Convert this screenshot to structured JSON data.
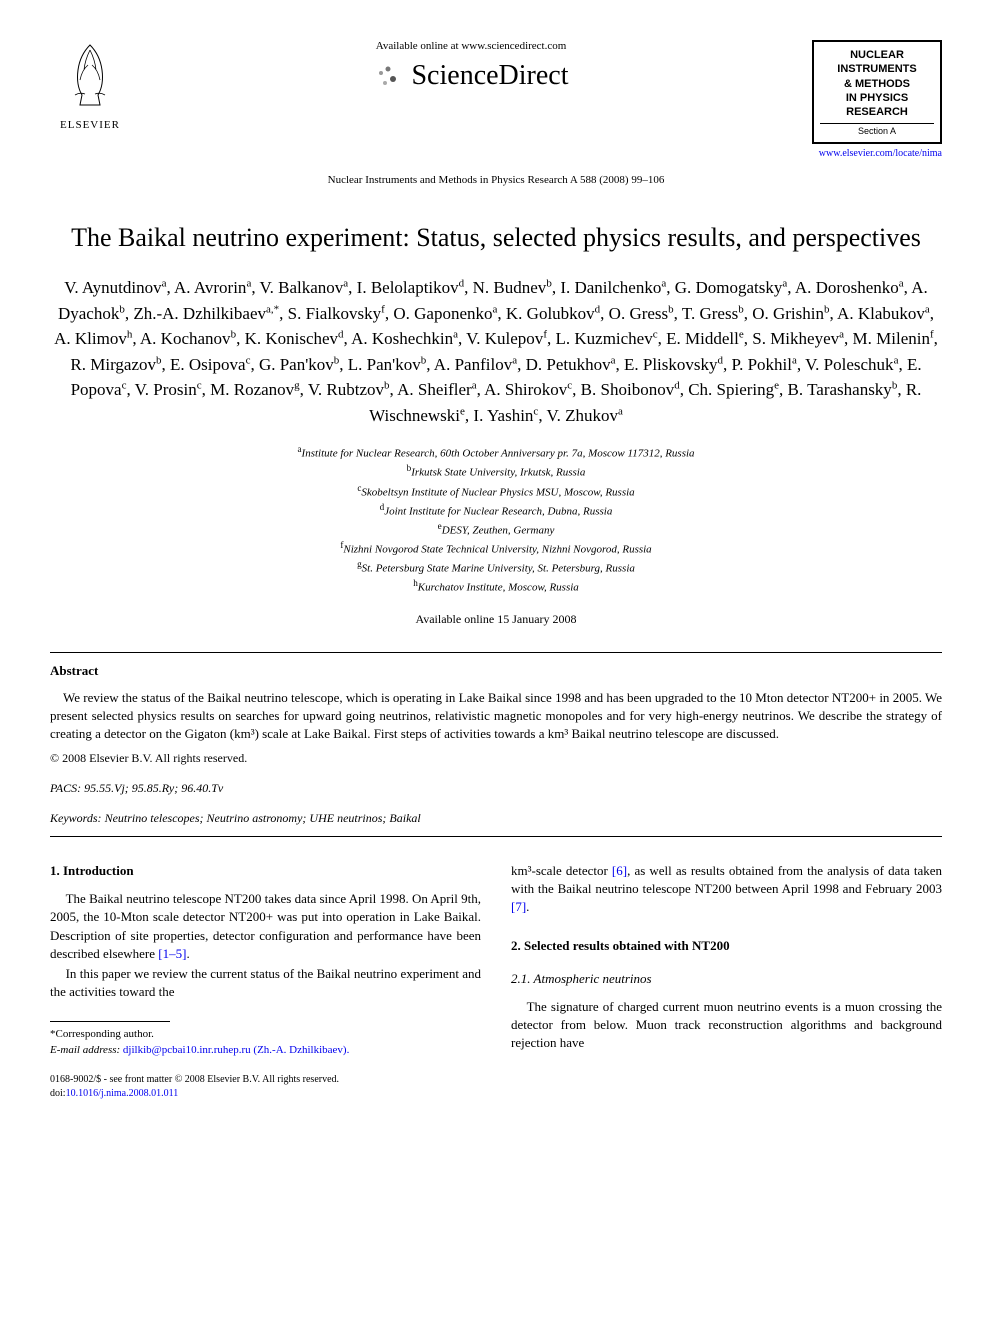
{
  "header": {
    "publisher_name": "ELSEVIER",
    "available_text": "Available online at www.sciencedirect.com",
    "platform_name": "ScienceDirect",
    "citation": "Nuclear Instruments and Methods in Physics Research A 588 (2008) 99–106",
    "journal_box": {
      "line1": "NUCLEAR",
      "line2": "INSTRUMENTS",
      "line3": "& METHODS",
      "line4": "IN PHYSICS",
      "line5": "RESEARCH",
      "section": "Section A"
    },
    "journal_url": "www.elsevier.com/locate/nima"
  },
  "title": "The Baikal neutrino experiment: Status, selected physics results, and perspectives",
  "authors_html": "V. Aynutdinov<sup>a</sup>, A. Avrorin<sup>a</sup>, V. Balkanov<sup>a</sup>, I. Belolaptikov<sup>d</sup>, N. Budnev<sup>b</sup>, I. Danilchenko<sup>a</sup>, G. Domogatsky<sup>a</sup>, A. Doroshenko<sup>a</sup>, A. Dyachok<sup>b</sup>, Zh.-A. Dzhilkibaev<sup>a,*</sup>, S. Fialkovsky<sup>f</sup>, O. Gaponenko<sup>a</sup>, K. Golubkov<sup>d</sup>, O. Gress<sup>b</sup>, T. Gress<sup>b</sup>, O. Grishin<sup>b</sup>, A. Klabukov<sup>a</sup>, A. Klimov<sup>h</sup>, A. Kochanov<sup>b</sup>, K. Konischev<sup>d</sup>, A. Koshechkin<sup>a</sup>, V. Kulepov<sup>f</sup>, L. Kuzmichev<sup>c</sup>, E. Middell<sup>e</sup>, S. Mikheyev<sup>a</sup>, M. Milenin<sup>f</sup>, R. Mirgazov<sup>b</sup>, E. Osipova<sup>c</sup>, G. Pan'kov<sup>b</sup>, L. Pan'kov<sup>b</sup>, A. Panfilov<sup>a</sup>, D. Petukhov<sup>a</sup>, E. Pliskovsky<sup>d</sup>, P. Pokhil<sup>a</sup>, V. Poleschuk<sup>a</sup>, E. Popova<sup>c</sup>, V. Prosin<sup>c</sup>, M. Rozanov<sup>g</sup>, V. Rubtzov<sup>b</sup>, A. Sheifler<sup>a</sup>, A. Shirokov<sup>c</sup>, B. Shoibonov<sup>d</sup>, Ch. Spiering<sup>e</sup>, B. Tarashansky<sup>b</sup>, R. Wischnewski<sup>e</sup>, I. Yashin<sup>c</sup>, V. Zhukov<sup>a</sup>",
  "affiliations": [
    {
      "sup": "a",
      "text": "Institute for Nuclear Research, 60th October Anniversary pr. 7a, Moscow 117312, Russia"
    },
    {
      "sup": "b",
      "text": "Irkutsk State University, Irkutsk, Russia"
    },
    {
      "sup": "c",
      "text": "Skobeltsyn Institute of Nuclear Physics MSU, Moscow, Russia"
    },
    {
      "sup": "d",
      "text": "Joint Institute for Nuclear Research, Dubna, Russia"
    },
    {
      "sup": "e",
      "text": "DESY, Zeuthen, Germany"
    },
    {
      "sup": "f",
      "text": "Nizhni Novgorod State Technical University, Nizhni Novgorod, Russia"
    },
    {
      "sup": "g",
      "text": "St. Petersburg State Marine University, St. Petersburg, Russia"
    },
    {
      "sup": "h",
      "text": "Kurchatov Institute, Moscow, Russia"
    }
  ],
  "available_date": "Available online 15 January 2008",
  "abstract": {
    "heading": "Abstract",
    "text": "We review the status of the Baikal neutrino telescope, which is operating in Lake Baikal since 1998 and has been upgraded to the 10 Mton detector NT200+ in 2005. We present selected physics results on searches for upward going neutrinos, relativistic magnetic monopoles and for very high-energy neutrinos. We describe the strategy of creating a detector on the Gigaton (km³) scale at Lake Baikal. First steps of activities towards a km³ Baikal neutrino telescope are discussed.",
    "copyright": "© 2008 Elsevier B.V. All rights reserved."
  },
  "pacs": {
    "label": "PACS:",
    "codes": "95.55.Vj; 95.85.Ry; 96.40.Tv"
  },
  "keywords": {
    "label": "Keywords:",
    "text": "Neutrino telescopes; Neutrino astronomy; UHE neutrinos; Baikal"
  },
  "body": {
    "left": {
      "section1_heading": "1. Introduction",
      "section1_p1": "The Baikal neutrino telescope NT200 takes data since April 1998. On April 9th, 2005, the 10-Mton scale detector NT200+ was put into operation in Lake Baikal. Description of site properties, detector configuration and performance have been described elsewhere ",
      "section1_ref1": "[1–5]",
      "section1_p1_end": ".",
      "section1_p2": "In this paper we review the current status of the Baikal neutrino experiment and the activities toward the"
    },
    "right": {
      "cont_text": "km³-scale detector ",
      "cont_ref1": "[6]",
      "cont_text2": ", as well as results obtained from the analysis of data taken with the Baikal neutrino telescope NT200 between April 1998 and February 2003 ",
      "cont_ref2": "[7]",
      "cont_end": ".",
      "section2_heading": "2. Selected results obtained with NT200",
      "section21_heading": "2.1. Atmospheric neutrinos",
      "section21_p1": "The signature of charged current muon neutrino events is a muon crossing the detector from below. Muon track reconstruction algorithms and background rejection have"
    }
  },
  "footnote": {
    "corresponding": "*Corresponding author.",
    "email_label": "E-mail address:",
    "email": "djilkib@pcbai10.inr.ruhep.ru",
    "email_name": "(Zh.-A. Dzhilkibaev)."
  },
  "footer": {
    "issn": "0168-9002/$ - see front matter © 2008 Elsevier B.V. All rights reserved.",
    "doi_label": "doi:",
    "doi": "10.1016/j.nima.2008.01.011"
  },
  "colors": {
    "text": "#000000",
    "background": "#ffffff",
    "link": "#0000ee",
    "orange_accent": "#f7941e"
  }
}
